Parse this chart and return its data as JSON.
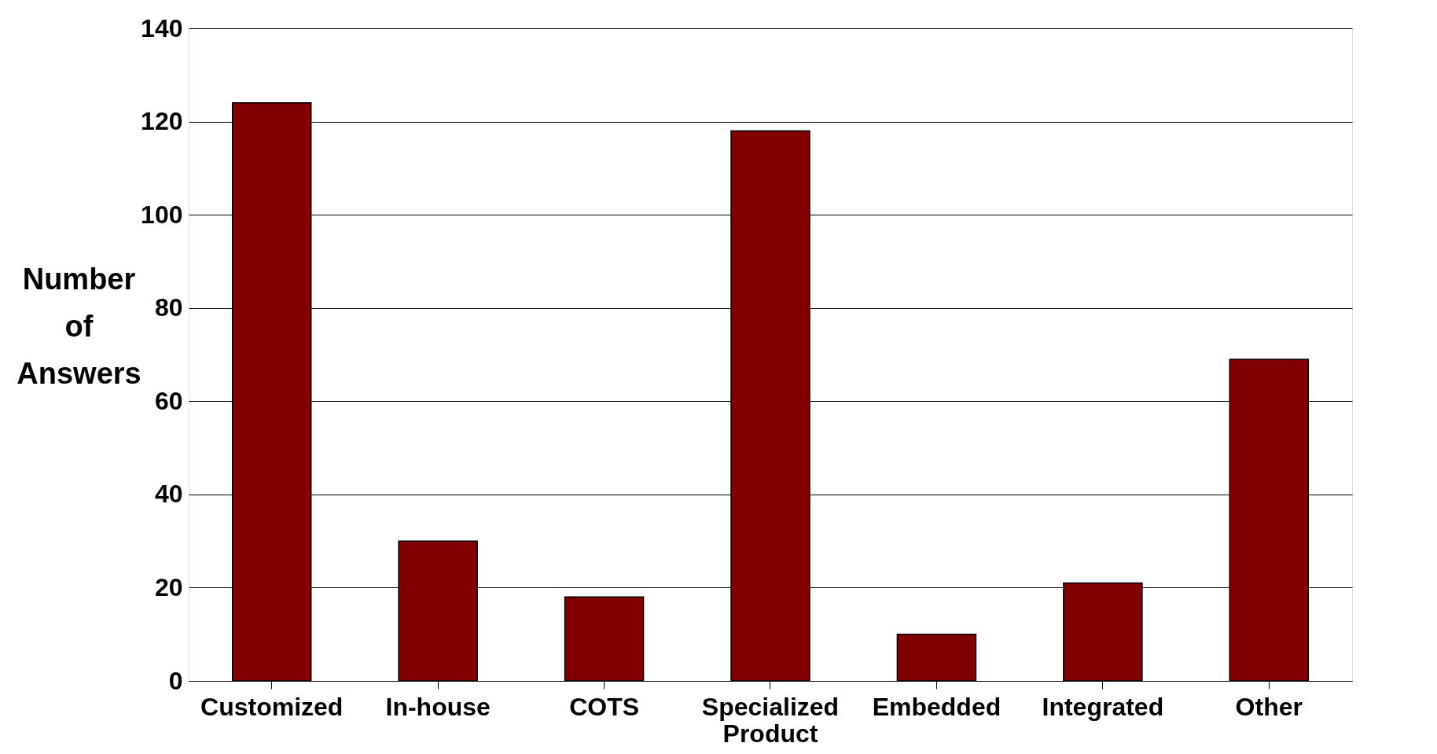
{
  "chart_data": {
    "type": "bar",
    "ylabel": "Number of Answers",
    "categories": [
      "Customized",
      "In-house",
      "COTS",
      "Specialized Product",
      "Embedded",
      "Integrated",
      "Other"
    ],
    "values": [
      124,
      30,
      18,
      118,
      10,
      21,
      69
    ],
    "color": "#800000",
    "ylim": [
      0,
      140
    ],
    "yticks": [
      0,
      20,
      40,
      60,
      80,
      100,
      120,
      140
    ],
    "grid": "y"
  }
}
